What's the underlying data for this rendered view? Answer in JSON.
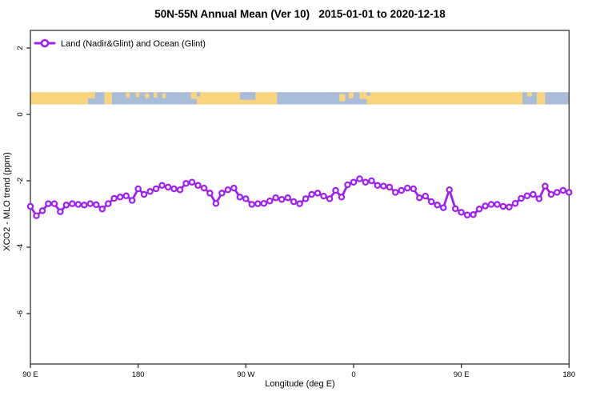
{
  "chart_data": {
    "type": "line",
    "title": "50N-55N Annual Mean (Ver 10)   2015-01-01 to 2020-12-18",
    "xlabel": "Longitude (deg E)",
    "ylabel": "XCO2 - MLO trend (ppm)",
    "grid": false,
    "legend": {
      "position": "top-left",
      "entries": [
        {
          "label": "Land (Nadir&Glint) and Ocean (Glint)",
          "color": "#A020F0",
          "marker": "open-circle"
        }
      ]
    },
    "colors": {
      "series": "#A020F0",
      "marker_fill": "#FFFFFF",
      "land": "#FAD57E",
      "ocean": "#A9BDD9",
      "axis": "#262626"
    },
    "x_axis": {
      "range": [
        90,
        540
      ],
      "note": "wrapped longitude: 90E eastward around the globe to 180",
      "ticks": [
        {
          "pos": 90,
          "label": "90 E"
        },
        {
          "pos": 180,
          "label": "180"
        },
        {
          "pos": 270,
          "label": "90 W"
        },
        {
          "pos": 360,
          "label": "0"
        },
        {
          "pos": 450,
          "label": "90 E"
        },
        {
          "pos": 540,
          "label": "180"
        }
      ]
    },
    "y_axis": {
      "range": [
        -7.6,
        2.5
      ],
      "ticks": [
        {
          "pos": 2,
          "label": "2"
        },
        {
          "pos": 0,
          "label": "0"
        },
        {
          "pos": -2,
          "label": "-2"
        },
        {
          "pos": -4,
          "label": "-4"
        },
        {
          "pos": -6,
          "label": "-6"
        }
      ]
    },
    "map_band": {
      "y_top": 0.67,
      "y_bottom": 0.3,
      "segments": [
        {
          "from": 90,
          "to": 138,
          "kind": "land"
        },
        {
          "from": 138,
          "to": 152,
          "kind": "ocean"
        },
        {
          "from": 152,
          "to": 158,
          "kind": "land"
        },
        {
          "from": 158,
          "to": 232,
          "kind": "ocean"
        },
        {
          "from": 232,
          "to": 296,
          "kind": "land"
        },
        {
          "from": 296,
          "to": 374,
          "kind": "ocean"
        },
        {
          "from": 374,
          "to": 501,
          "kind": "land"
        },
        {
          "from": 501,
          "to": 513,
          "kind": "ocean"
        },
        {
          "from": 513,
          "to": 520,
          "kind": "land"
        },
        {
          "from": 520,
          "to": 540,
          "kind": "ocean"
        }
      ],
      "patches": [
        {
          "from": 138,
          "to": 144,
          "top": 0.0,
          "bottom": 0.5,
          "kind": "land"
        },
        {
          "from": 170,
          "to": 173,
          "top": 0.0,
          "bottom": 0.45,
          "kind": "land"
        },
        {
          "from": 178,
          "to": 181,
          "top": 0.0,
          "bottom": 0.4,
          "kind": "land"
        },
        {
          "from": 186,
          "to": 189,
          "top": 0.1,
          "bottom": 0.5,
          "kind": "land"
        },
        {
          "from": 193,
          "to": 196,
          "top": 0.0,
          "bottom": 0.45,
          "kind": "land"
        },
        {
          "from": 200,
          "to": 203,
          "top": 0.1,
          "bottom": 0.5,
          "kind": "land"
        },
        {
          "from": 224,
          "to": 229,
          "top": 0.0,
          "bottom": 0.55,
          "kind": "land"
        },
        {
          "from": 229,
          "to": 232,
          "top": 0.35,
          "bottom": 1.0,
          "kind": "land"
        },
        {
          "from": 265,
          "to": 278,
          "top": 0.0,
          "bottom": 0.62,
          "kind": "ocean"
        },
        {
          "from": 348,
          "to": 353,
          "top": 0.15,
          "bottom": 0.75,
          "kind": "land"
        },
        {
          "from": 356,
          "to": 360,
          "top": 0.0,
          "bottom": 0.5,
          "kind": "land"
        },
        {
          "from": 365,
          "to": 371,
          "top": 0.0,
          "bottom": 0.55,
          "kind": "land"
        },
        {
          "from": 371,
          "to": 374,
          "top": 0.3,
          "bottom": 1.0,
          "kind": "land"
        },
        {
          "from": 497,
          "to": 501,
          "top": 0.0,
          "bottom": 0.6,
          "kind": "land"
        },
        {
          "from": 505,
          "to": 509,
          "top": 0.0,
          "bottom": 0.35,
          "kind": "land"
        }
      ]
    },
    "series": [
      {
        "name": "Land (Nadir&Glint) and Ocean (Glint)",
        "color": "#A020F0",
        "marker": "open-circle",
        "x": [
          90,
          95,
          100,
          105,
          110,
          115,
          120,
          125,
          130,
          135,
          140,
          145,
          150,
          155,
          160,
          165,
          170,
          175,
          180,
          185,
          190,
          195,
          200,
          205,
          210,
          215,
          220,
          225,
          230,
          235,
          240,
          245,
          250,
          255,
          260,
          265,
          270,
          275,
          280,
          285,
          290,
          295,
          300,
          305,
          310,
          315,
          320,
          325,
          330,
          335,
          340,
          345,
          350,
          355,
          360,
          365,
          370,
          375,
          380,
          385,
          390,
          395,
          400,
          405,
          410,
          415,
          420,
          425,
          430,
          435,
          440,
          445,
          450,
          455,
          460,
          465,
          470,
          475,
          480,
          485,
          490,
          495,
          500,
          505,
          510,
          515,
          520,
          525,
          530,
          535,
          540
        ],
        "values": [
          -2.77,
          -3.05,
          -2.9,
          -2.69,
          -2.69,
          -2.93,
          -2.73,
          -2.69,
          -2.71,
          -2.73,
          -2.69,
          -2.72,
          -2.85,
          -2.69,
          -2.53,
          -2.49,
          -2.45,
          -2.59,
          -2.24,
          -2.41,
          -2.32,
          -2.24,
          -2.14,
          -2.19,
          -2.24,
          -2.27,
          -2.08,
          -2.04,
          -2.14,
          -2.22,
          -2.37,
          -2.68,
          -2.37,
          -2.27,
          -2.22,
          -2.49,
          -2.54,
          -2.71,
          -2.69,
          -2.68,
          -2.61,
          -2.51,
          -2.56,
          -2.51,
          -2.63,
          -2.69,
          -2.54,
          -2.41,
          -2.37,
          -2.46,
          -2.54,
          -2.29,
          -2.49,
          -2.12,
          -2.04,
          -1.94,
          -2.04,
          -2.0,
          -2.14,
          -2.16,
          -2.19,
          -2.35,
          -2.29,
          -2.22,
          -2.24,
          -2.51,
          -2.46,
          -2.63,
          -2.73,
          -2.81,
          -2.27,
          -2.84,
          -2.95,
          -3.03,
          -3.02,
          -2.85,
          -2.76,
          -2.71,
          -2.71,
          -2.77,
          -2.79,
          -2.68,
          -2.53,
          -2.45,
          -2.41,
          -2.54,
          -2.16,
          -2.41,
          -2.35,
          -2.29,
          -2.35
        ]
      }
    ]
  }
}
